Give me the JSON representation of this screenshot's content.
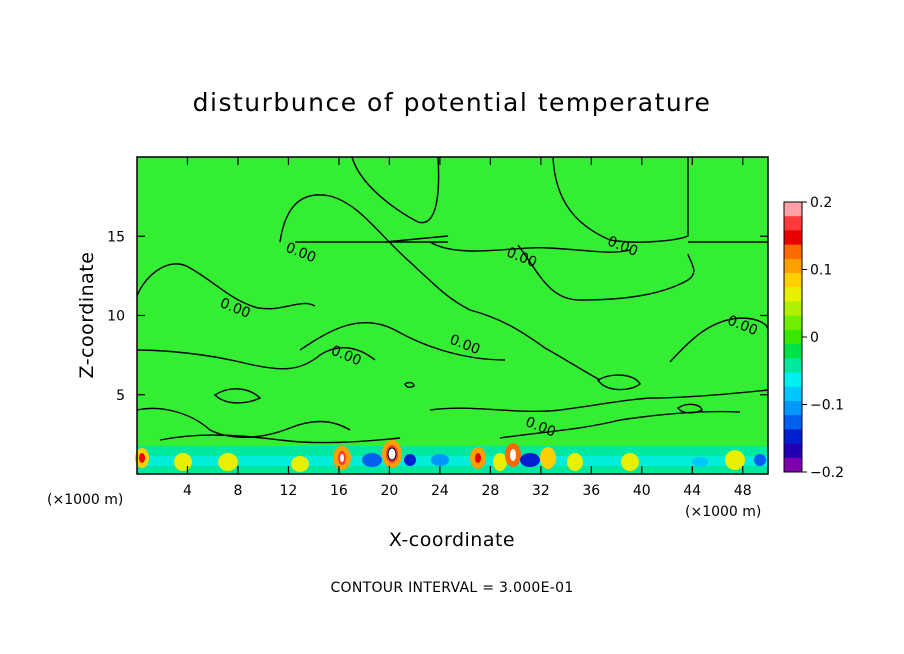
{
  "chart_data": {
    "type": "heatmap",
    "title": "disturbunce of potential temperature",
    "xlabel": "X-coordinate",
    "ylabel": "Z-coordinate",
    "x_unit": "(×1000 m)",
    "xlim": [
      0,
      50
    ],
    "ylim": [
      0,
      20
    ],
    "x_ticks": [
      4,
      8,
      12,
      16,
      20,
      24,
      28,
      32,
      36,
      40,
      44,
      48
    ],
    "y_ticks": [
      5,
      10,
      15
    ],
    "contour_labels": [
      {
        "text": "0.00",
        "x": 13,
        "z": 14.0
      },
      {
        "text": "0.00",
        "x": 7.8,
        "z": 10.5
      },
      {
        "text": "0.00",
        "x": 16.6,
        "z": 7.5
      },
      {
        "text": "0.00",
        "x": 26,
        "z": 8.2
      },
      {
        "text": "0.00",
        "x": 30.5,
        "z": 13.7
      },
      {
        "text": "0.00",
        "x": 38.5,
        "z": 14.4
      },
      {
        "text": "0.00",
        "x": 48,
        "z": 9.4
      },
      {
        "text": "0.00",
        "x": 32,
        "z": 3.0
      }
    ],
    "colorbar": {
      "min": -0.2,
      "max": 0.2,
      "tick_labels": [
        "0.2",
        "0.1",
        "0",
        "−0.1",
        "−0.2"
      ],
      "colors": [
        "#ff9fa8",
        "#ff3a3a",
        "#e80000",
        "#ff6a00",
        "#ffa000",
        "#ffd000",
        "#e8f000",
        "#b0f000",
        "#70ee00",
        "#38e800",
        "#00e048",
        "#00e8a0",
        "#00f0f0",
        "#00c8ff",
        "#0098ff",
        "#0060f0",
        "#0020d0",
        "#2000b0",
        "#8000b0"
      ]
    },
    "background_color": "#33ee33",
    "contour_interval": "CONTOUR INTERVAL = 3.000E-01"
  }
}
